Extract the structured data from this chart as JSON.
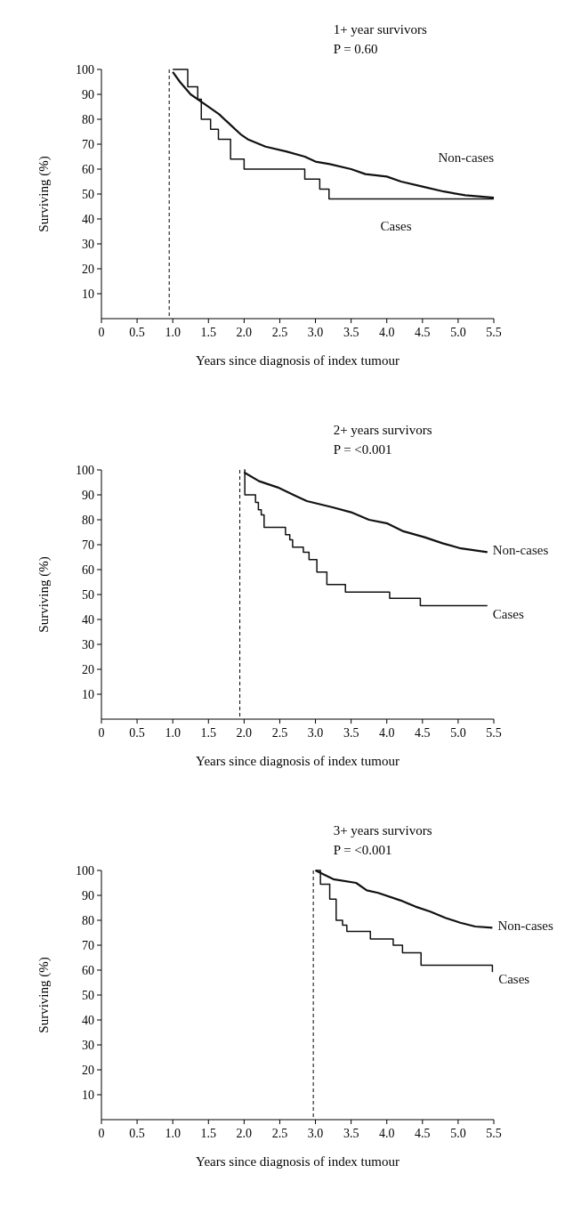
{
  "chart_data": [
    {
      "type": "line",
      "title": "1+ year survivors",
      "subtitle": "P = 0.60",
      "xlabel": "Years since diagnosis of index tumour",
      "ylabel": "Surviving (%)",
      "xlim": [
        0,
        5.5
      ],
      "ylim": [
        0,
        100
      ],
      "xticks": [
        0,
        0.5,
        {
          "value": 1,
          "label": "1.0"
        },
        1.5,
        {
          "value": 2,
          "label": "2.0"
        },
        2.5,
        {
          "value": 3,
          "label": "3.0"
        },
        3.5,
        {
          "value": 4,
          "label": "4.0"
        },
        4.5,
        {
          "value": 5,
          "label": "5.0"
        },
        5.5
      ],
      "yticks": [
        10,
        20,
        30,
        40,
        50,
        60,
        70,
        80,
        90,
        100
      ],
      "ref_lines": [
        {
          "axis": "x",
          "value": 0.95,
          "line_style": "dashed"
        }
      ],
      "series": [
        {
          "name": "Non-cases",
          "color": "#111111",
          "x": [
            1.0,
            1.1,
            1.25,
            1.45,
            1.65,
            1.8,
            1.95,
            2.05,
            2.3,
            2.6,
            2.85,
            3.0,
            3.2,
            3.5,
            3.7,
            4.0,
            4.2,
            4.5,
            4.8,
            5.1,
            5.5
          ],
          "values": [
            99,
            95,
            90,
            86,
            82,
            78,
            74,
            72,
            69,
            67,
            65,
            63,
            62,
            60,
            58,
            57,
            55,
            53,
            51,
            49.5,
            48.5
          ]
        },
        {
          "name": "Cases",
          "type": "step",
          "color": "#111111",
          "x": [
            1.0,
            1.21,
            1.35,
            1.4,
            1.53,
            1.64,
            1.81,
            2.0,
            2.85,
            3.06,
            3.19,
            5.5
          ],
          "values": [
            100,
            93,
            88,
            80,
            76,
            72,
            64,
            60,
            56,
            52,
            48,
            48
          ]
        }
      ]
    },
    {
      "type": "line",
      "title": "2+ years survivors",
      "subtitle": "P = <0.001",
      "xlabel": "Years since diagnosis of index tumour",
      "ylabel": "Surviving (%)",
      "xlim": [
        0,
        5.5
      ],
      "ylim": [
        0,
        100
      ],
      "xticks": [
        0,
        0.5,
        {
          "value": 1,
          "label": "1.0"
        },
        1.5,
        {
          "value": 2,
          "label": "2.0"
        },
        2.5,
        {
          "value": 3,
          "label": "3.0"
        },
        3.5,
        {
          "value": 4,
          "label": "4.0"
        },
        4.5,
        {
          "value": 5,
          "label": "5.0"
        },
        5.5
      ],
      "yticks": [
        10,
        20,
        30,
        40,
        50,
        60,
        70,
        80,
        90,
        100
      ],
      "ref_lines": [
        {
          "axis": "x",
          "value": 1.94,
          "line_style": "dashed"
        }
      ],
      "series": [
        {
          "name": "Non-cases",
          "color": "#111111",
          "x": [
            2.0,
            2.21,
            2.47,
            2.73,
            2.88,
            3.24,
            3.5,
            3.75,
            4.01,
            4.22,
            4.53,
            4.79,
            5.04,
            5.41
          ],
          "values": [
            99,
            95.5,
            93,
            89.5,
            87.5,
            85,
            83,
            80,
            78.5,
            75.5,
            73,
            70.5,
            68.5,
            67
          ]
        },
        {
          "name": "Cases",
          "type": "step",
          "color": "#111111",
          "x": [
            2.0,
            2.01,
            2.16,
            2.2,
            2.24,
            2.28,
            2.58,
            2.64,
            2.68,
            2.83,
            2.91,
            3.02,
            3.16,
            3.42,
            4.04,
            4.47,
            5.41
          ],
          "values": [
            100,
            90,
            87,
            84,
            82,
            77,
            74,
            72,
            69,
            67,
            64,
            59,
            54,
            51,
            48.5,
            45.5,
            45.5
          ]
        }
      ]
    },
    {
      "type": "line",
      "title": "3+ years survivors",
      "subtitle": "P = <0.001",
      "xlabel": "Years since diagnosis of index tumour",
      "ylabel": "Surviving (%)",
      "xlim": [
        0,
        5.5
      ],
      "ylim": [
        0,
        100
      ],
      "xticks": [
        0,
        0.5,
        {
          "value": 1,
          "label": "1.0"
        },
        1.5,
        {
          "value": 2,
          "label": "2.0"
        },
        2.5,
        {
          "value": 3,
          "label": "3.0"
        },
        3.5,
        {
          "value": 4,
          "label": "4.0"
        },
        4.5,
        {
          "value": 5,
          "label": "5.0"
        },
        5.5
      ],
      "yticks": [
        10,
        20,
        30,
        40,
        50,
        60,
        70,
        80,
        90,
        100
      ],
      "ref_lines": [
        {
          "axis": "x",
          "value": 2.97,
          "line_style": "dashed"
        }
      ],
      "series": [
        {
          "name": "Non-cases",
          "color": "#111111",
          "x": [
            3.0,
            3.25,
            3.57,
            3.72,
            3.88,
            4.19,
            4.4,
            4.61,
            4.82,
            5.03,
            5.24,
            5.48
          ],
          "values": [
            100,
            96.5,
            95,
            92,
            91,
            88,
            85.5,
            83.5,
            81,
            79,
            77.5,
            77
          ]
        },
        {
          "name": "Cases",
          "type": "step",
          "color": "#111111",
          "x": [
            3.0,
            3.07,
            3.2,
            3.29,
            3.38,
            3.44,
            3.77,
            4.09,
            4.22,
            4.48,
            5.48,
            5.49
          ],
          "values": [
            100,
            94.5,
            88.5,
            80,
            78,
            75.5,
            72.5,
            70,
            67,
            62,
            59.5,
            59.5
          ]
        }
      ]
    }
  ]
}
